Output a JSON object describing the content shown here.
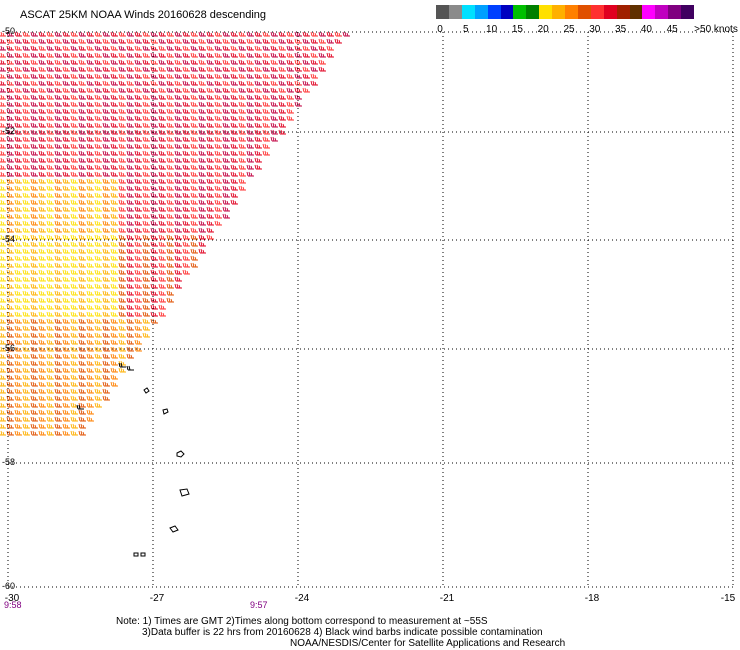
{
  "title": "ASCAT 25KM NOAA Winds 20160628 descending",
  "legend": {
    "segments": [
      {
        "color": "#555555"
      },
      {
        "color": "#8a8a8a"
      },
      {
        "color": "#00e0ff"
      },
      {
        "color": "#00a0ff"
      },
      {
        "color": "#0040ff"
      },
      {
        "color": "#0000c0"
      },
      {
        "color": "#00c000"
      },
      {
        "color": "#008000"
      },
      {
        "color": "#ffe000"
      },
      {
        "color": "#ffb000"
      },
      {
        "color": "#ff8000"
      },
      {
        "color": "#e05000"
      },
      {
        "color": "#ff3030"
      },
      {
        "color": "#e00020"
      },
      {
        "color": "#a02000"
      },
      {
        "color": "#603000"
      },
      {
        "color": "#ff00ff"
      },
      {
        "color": "#c000c0"
      },
      {
        "color": "#800080"
      },
      {
        "color": "#400060"
      }
    ],
    "labels": [
      "0",
      "5",
      "10",
      "15",
      "20",
      "25",
      "30",
      "35",
      "40",
      "45",
      ">50 knots"
    ]
  },
  "map": {
    "lat_labels": [
      "-50",
      "-52",
      "-54",
      "-56",
      "-58",
      "-60"
    ],
    "lon_labels": [
      "-30",
      "-27",
      "-24",
      "-21",
      "-18",
      "-15"
    ],
    "time_labels": [
      "9:58",
      "9:57"
    ],
    "barb_colors": [
      "#ffe000",
      "#ffb000",
      "#ff8000",
      "#e05000",
      "#ff3030",
      "#e00020",
      "#c00040"
    ]
  },
  "notes": {
    "line1": "Note: 1) Times are GMT 2)Times along bottom correspond to measurement at ~55S",
    "line2": "3)Data buffer is 22 hrs from 20160628 4) Black wind barbs indicate possible contamination",
    "line3": "NOAA/NESDIS/Center for Satellite Applications and Research"
  }
}
